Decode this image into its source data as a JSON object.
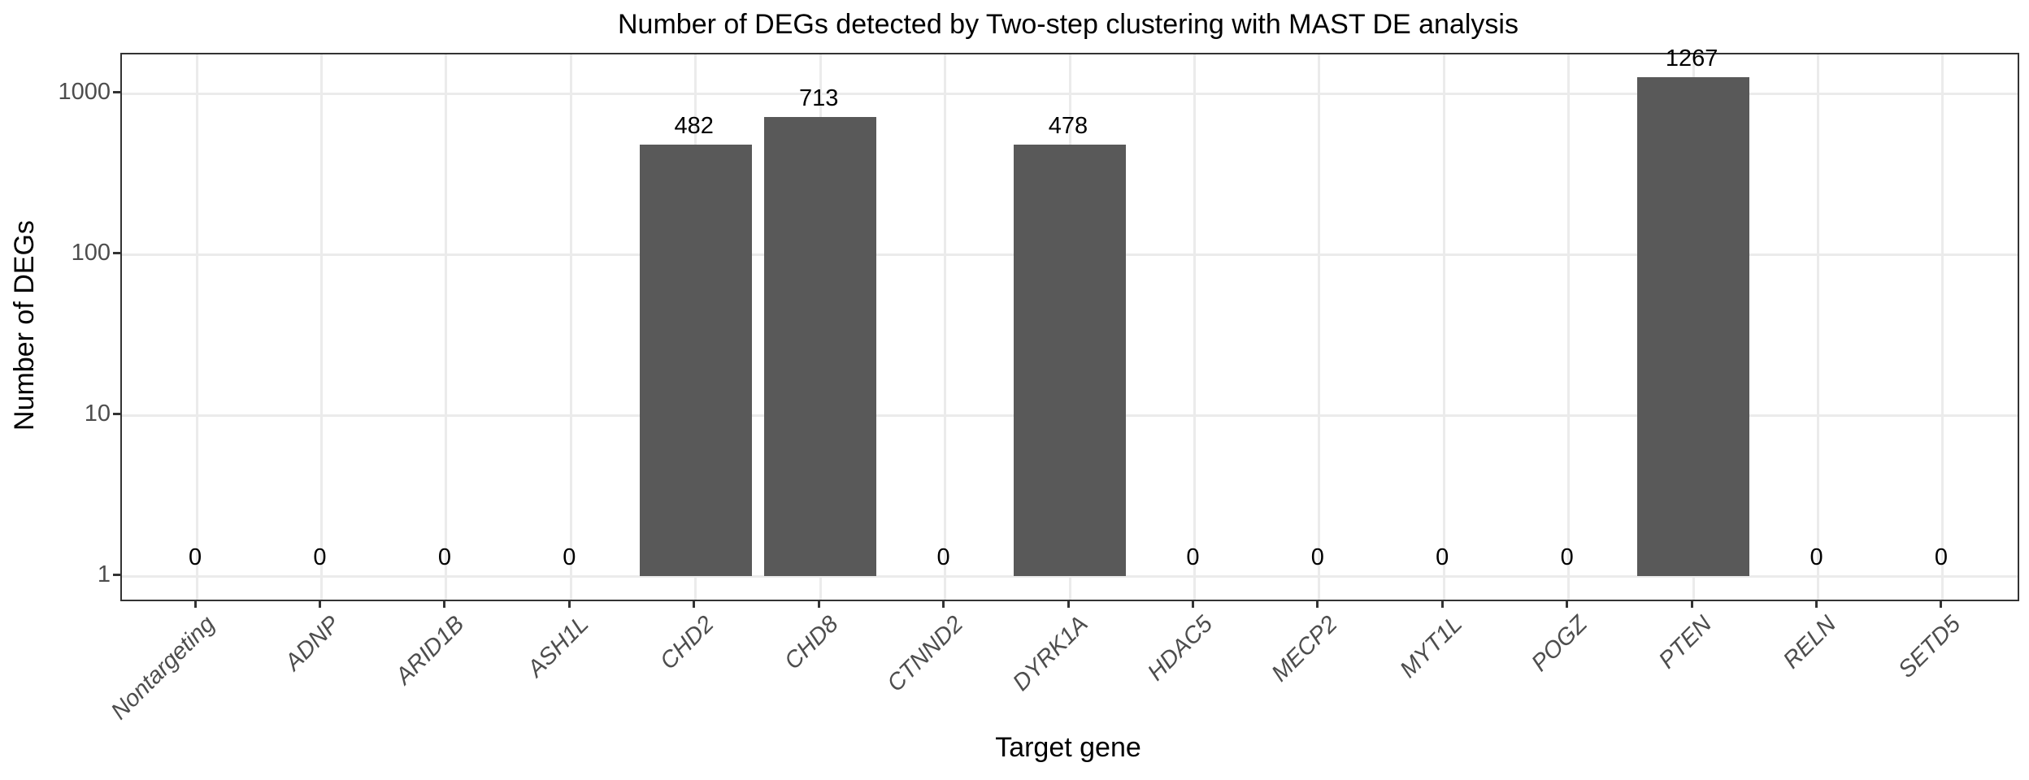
{
  "chart_data": {
    "type": "bar",
    "title": "Number of DEGs detected by Two-step clustering with MAST DE analysis",
    "xlabel": "Target gene",
    "ylabel": "Number of DEGs",
    "categories": [
      "Nontargeting",
      "ADNP",
      "ARID1B",
      "ASH1L",
      "CHD2",
      "CHD8",
      "CTNND2",
      "DYRK1A",
      "HDAC5",
      "MECP2",
      "MYT1L",
      "POGZ",
      "PTEN",
      "RELN",
      "SETD5"
    ],
    "values": [
      0,
      0,
      0,
      0,
      482,
      713,
      0,
      478,
      0,
      0,
      0,
      0,
      1267,
      0,
      0
    ],
    "y_scale": "log10",
    "y_ticks": [
      1,
      10,
      100,
      1000
    ],
    "y_tick_labels": [
      "1",
      "10",
      "100",
      "1000"
    ],
    "grid": true,
    "legend": false,
    "colors": {
      "bar": "#595959",
      "panel_border": "#333333",
      "gridline": "#ebebeb",
      "tick_text": "#4d4d4d",
      "title_text": "#000000",
      "background": "#ffffff"
    }
  }
}
